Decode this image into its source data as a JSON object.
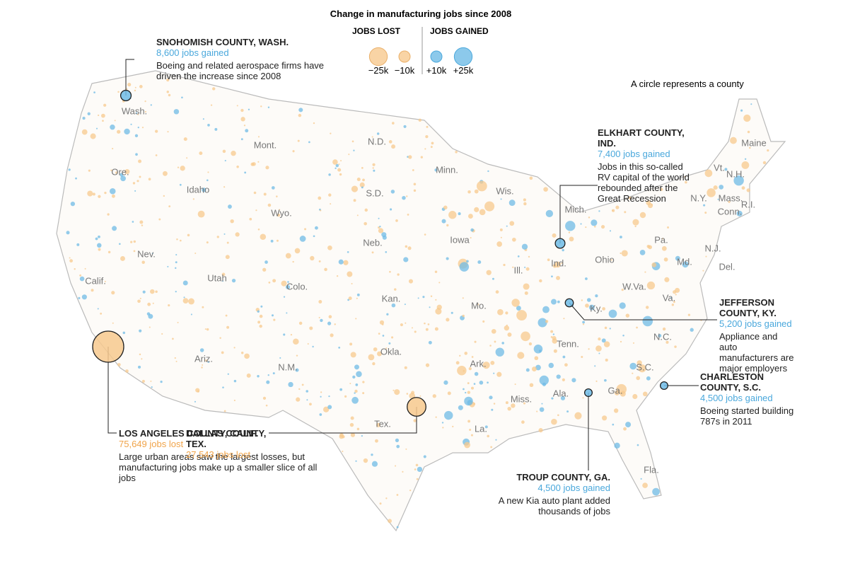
{
  "title": "Change in manufacturing jobs since 2008",
  "legend": {
    "lost_label": "JOBS LOST",
    "gained_label": "JOBS GAINED",
    "items": [
      {
        "value": -25000,
        "label": "−25k"
      },
      {
        "value": -10000,
        "label": "−10k"
      },
      {
        "value": 10000,
        "label": "+10k"
      },
      {
        "value": 25000,
        "label": "+25k"
      }
    ]
  },
  "note": "A circle represents a county",
  "states": [
    "Wash.",
    "Mont.",
    "N.D.",
    "Minn.",
    "Ore.",
    "Idaho",
    "S.D.",
    "Wis.",
    "Wyo.",
    "Mich.",
    "Neb.",
    "Iowa",
    "Nev.",
    "Calif.",
    "Utah",
    "Colo.",
    "Kan.",
    "Mo.",
    "Ill.",
    "Ind.",
    "Ohio",
    "Pa.",
    "N.Y.",
    "Maine",
    "Vt.",
    "N.H.",
    "Mass.",
    "R.I.",
    "Conn.",
    "N.J.",
    "Md.",
    "Del.",
    "W.Va.",
    "Va.",
    "Ky.",
    "Tenn.",
    "N.C.",
    "S.C.",
    "Ga.",
    "Ala.",
    "Miss.",
    "Ark.",
    "La.",
    "Okla.",
    "Tex.",
    "N.M.",
    "Ariz.",
    "Fla."
  ],
  "annotations": [
    {
      "name": "SNOHOMISH COUNTY, WASH.",
      "value": 8600,
      "jobs_label": "8,600 jobs gained",
      "text": "Boeing and related aerospace firms have driven the increase since 2008"
    },
    {
      "name": "ELKHART COUNTY, IND.",
      "value": 7400,
      "jobs_label": "7,400 jobs gained",
      "text": "Jobs in this so-called RV capital of the world rebounded after the Great Recession"
    },
    {
      "name": "JEFFERSON COUNTY, KY.",
      "value": 5200,
      "jobs_label": "5,200 jobs gained",
      "text": "Appliance and auto manufacturers are major employers"
    },
    {
      "name": "CHARLESTON COUNTY, S.C.",
      "value": 4500,
      "jobs_label": "4,500 jobs gained",
      "text": "Boeing started building 787s in 2011"
    },
    {
      "name": "TROUP COUNTY, GA.",
      "value": 4500,
      "jobs_label": "4,500 jobs gained",
      "text": "A new Kia auto plant added thousands of jobs"
    },
    {
      "name": "LOS ANGELES COUNTY, CALIF.",
      "value": -75649,
      "jobs_label": "75,649 jobs lost",
      "text": "Large urban areas saw the largest losses, but manufacturing jobs make up a smaller slice of all jobs"
    },
    {
      "name": "DALLAS COUNTY, TEX.",
      "value": -27543,
      "jobs_label": "27,543 jobs lost",
      "text": ""
    }
  ]
}
